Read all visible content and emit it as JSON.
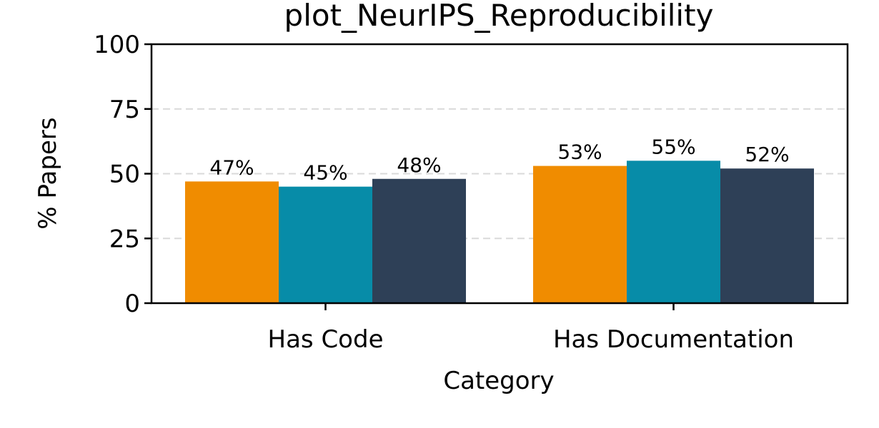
{
  "chart_data": {
    "type": "bar",
    "title": "plot_NeurIPS_Reproducibility",
    "xlabel": "Category",
    "ylabel": "% Papers",
    "categories": [
      "Has Code",
      "Has Documentation"
    ],
    "ylim": [
      0,
      100
    ],
    "yticks": [
      0,
      25,
      50,
      75,
      100
    ],
    "grid": "horizontal dashed",
    "legend": "none",
    "series": [
      {
        "values": [
          47,
          53
        ],
        "labels": [
          "47%",
          "53%"
        ],
        "color": "#f08c00"
      },
      {
        "values": [
          45,
          55
        ],
        "labels": [
          "45%",
          "55%"
        ],
        "color": "#078ca8"
      },
      {
        "values": [
          48,
          52
        ],
        "labels": [
          "48%",
          "52%"
        ],
        "color": "#2e4057"
      }
    ]
  }
}
